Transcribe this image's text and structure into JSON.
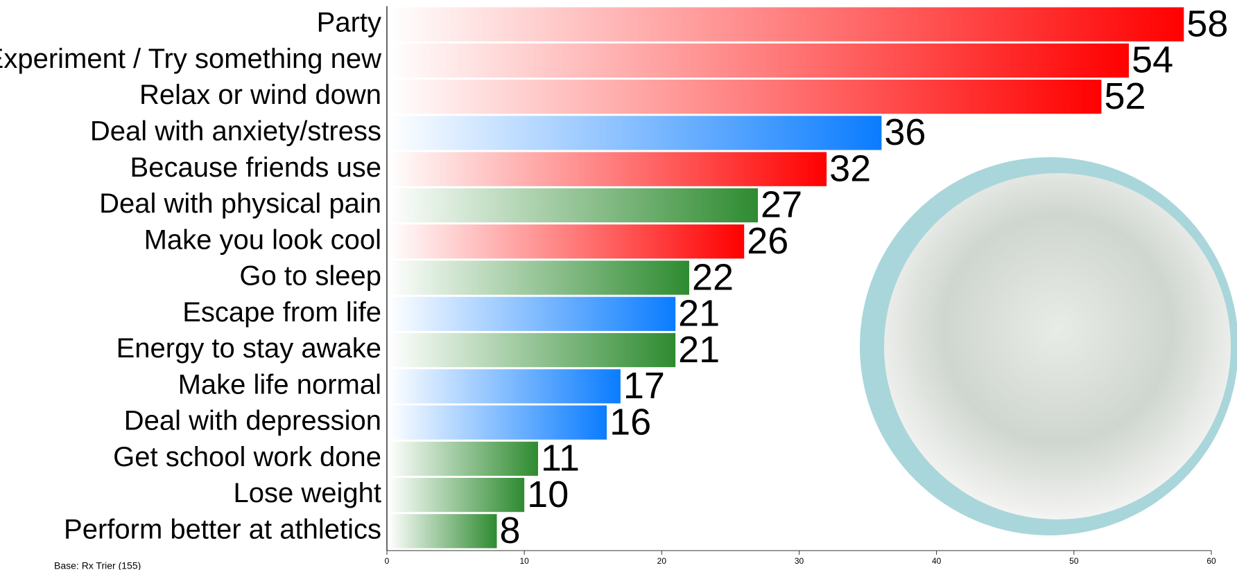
{
  "chart_data": {
    "type": "hbar",
    "footnote": "Base: Rx Trier (155)",
    "categories": [
      "Party",
      "Experiment / Try something new",
      "Relax or wind down",
      "Deal with anxiety/stress",
      "Because friends use",
      "Deal with physical pain",
      "Make you look cool",
      "Go to sleep",
      "Escape from life",
      "Energy to stay awake",
      "Make life normal",
      "Deal with depression",
      "Get school work done",
      "Lose weight",
      "Perform better at athletics"
    ],
    "values": [
      58,
      54,
      52,
      36,
      32,
      27,
      26,
      22,
      21,
      21,
      17,
      16,
      11,
      10,
      8
    ],
    "colors": [
      "#ff0000",
      "#ff0000",
      "#ff0000",
      "#0a7cff",
      "#ff0000",
      "#2e8b30",
      "#ff0000",
      "#2e8b30",
      "#0a7cff",
      "#2e8b30",
      "#0a7cff",
      "#0a7cff",
      "#2e8b30",
      "#2e8b30",
      "#2e8b30"
    ],
    "xlim": [
      0,
      60
    ],
    "xticks": [
      0,
      10,
      20,
      30,
      40,
      50,
      60
    ]
  }
}
